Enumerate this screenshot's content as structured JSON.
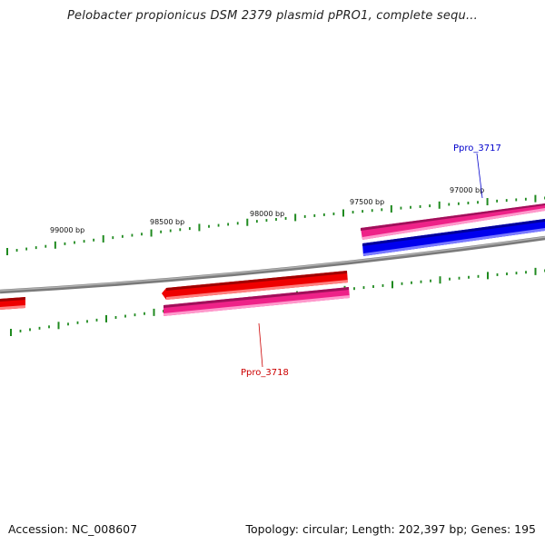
{
  "title": "Pelobacter propionicus DSM 2379 plasmid pPRO1, complete sequ...",
  "footer": {
    "accession": "Accession: NC_008607",
    "summary": "Topology: circular; Length: 202,397 bp; Genes: 195"
  },
  "colors": {
    "backbone": "#8a8a8a",
    "tick": "#1f8a1f",
    "gene_red": "#ee0000",
    "gene_blue": "#0000ee",
    "cds_pink": "#ee2288",
    "label_red": "#cc0000",
    "label_blue": "#0000cc"
  },
  "scale_labels": [
    {
      "bp": 99000,
      "text": "99000 bp"
    },
    {
      "bp": 98500,
      "text": "98500 bp"
    },
    {
      "bp": 98000,
      "text": "98000 bp"
    },
    {
      "bp": 97500,
      "text": "97500 bp"
    },
    {
      "bp": 97000,
      "text": "97000 bp"
    }
  ],
  "gene_labels": [
    {
      "id": "Ppro_3717",
      "text": "Ppro_3717"
    },
    {
      "id": "Ppro_3718",
      "text": "Ppro_3718"
    }
  ]
}
